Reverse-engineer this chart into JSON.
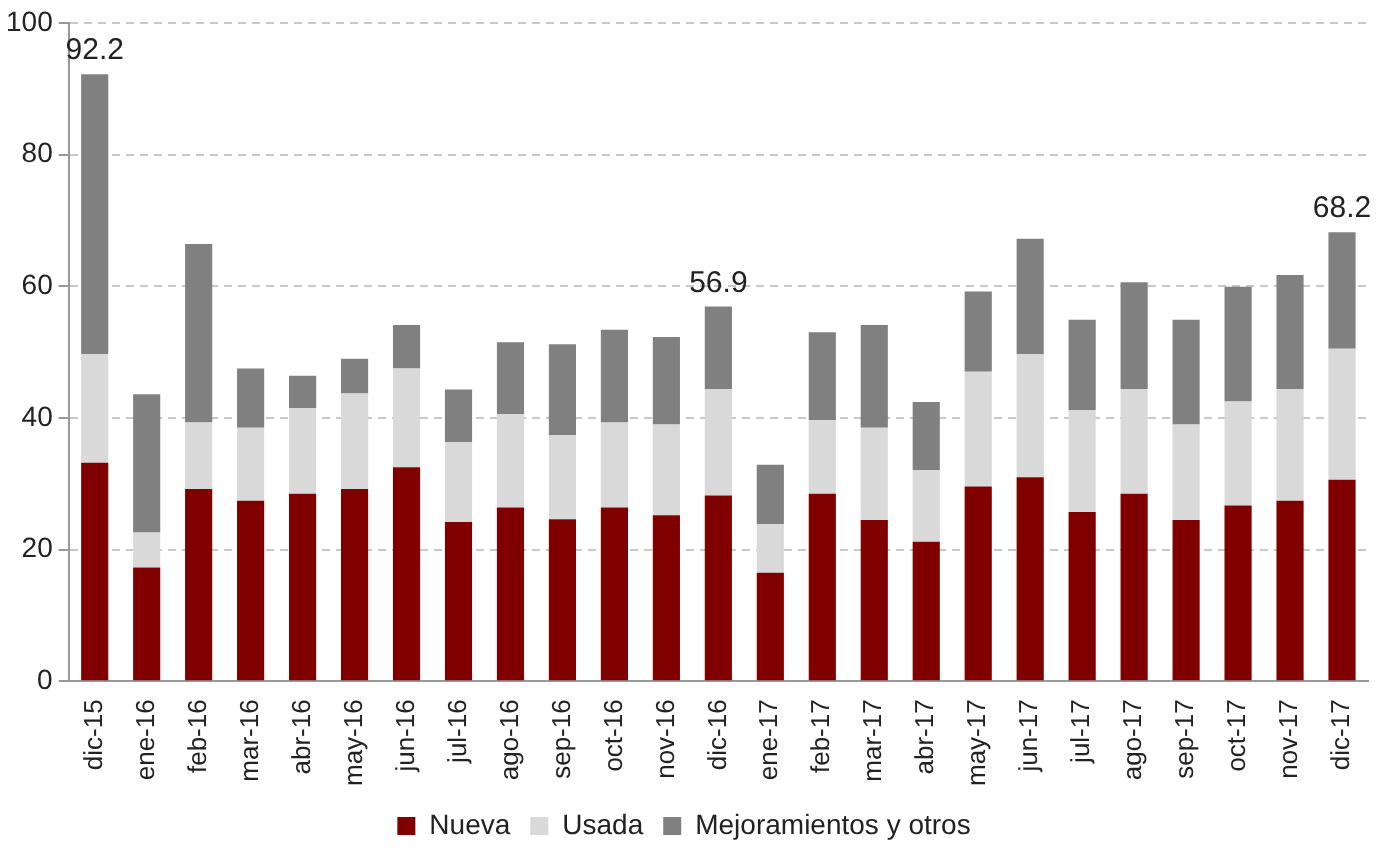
{
  "chart_data": {
    "type": "bar",
    "stacked": true,
    "categories": [
      "dic-15",
      "ene-16",
      "feb-16",
      "mar-16",
      "abr-16",
      "may-16",
      "jun-16",
      "jul-16",
      "ago-16",
      "sep-16",
      "oct-16",
      "nov-16",
      "dic-16",
      "ene-17",
      "feb-17",
      "mar-17",
      "abr-17",
      "may-17",
      "jun-17",
      "jul-17",
      "ago-17",
      "sep-17",
      "oct-17",
      "nov-17",
      "dic-17"
    ],
    "series": [
      {
        "name": "Nueva",
        "color": "#800000",
        "values": [
          33.2,
          17.3,
          29.2,
          27.4,
          28.5,
          29.2,
          32.5,
          24.2,
          26.4,
          24.6,
          26.4,
          25.2,
          28.2,
          16.5,
          28.5,
          24.5,
          21.2,
          29.6,
          31.0,
          25.7,
          28.5,
          24.5,
          26.7,
          27.4,
          30.6
        ]
      },
      {
        "name": "Usada",
        "color": "#d9d9d9",
        "values": [
          16.5,
          5.3,
          10.1,
          11.1,
          13.0,
          14.5,
          15.0,
          12.1,
          14.2,
          12.8,
          12.9,
          13.8,
          16.2,
          7.4,
          11.2,
          14.0,
          10.9,
          17.4,
          18.7,
          15.5,
          15.9,
          14.5,
          15.8,
          17.0,
          19.9
        ]
      },
      {
        "name": "Mejoramientos y otros",
        "color": "#808080",
        "values": [
          42.5,
          21.0,
          27.1,
          9.0,
          4.9,
          5.3,
          6.6,
          8.0,
          10.9,
          13.8,
          14.1,
          13.3,
          12.5,
          9.0,
          13.3,
          15.6,
          10.3,
          12.2,
          17.5,
          13.7,
          16.2,
          15.9,
          17.4,
          17.3,
          17.7
        ]
      }
    ],
    "totals": [
      "92.2",
      null,
      null,
      null,
      null,
      null,
      null,
      null,
      null,
      null,
      null,
      null,
      "56.9",
      null,
      null,
      null,
      null,
      null,
      null,
      null,
      null,
      null,
      null,
      null,
      "68.2"
    ],
    "ylim": [
      0,
      100
    ],
    "yticks": [
      0,
      20,
      40,
      60,
      80,
      100
    ],
    "grid": "y",
    "legend": "bottom"
  }
}
